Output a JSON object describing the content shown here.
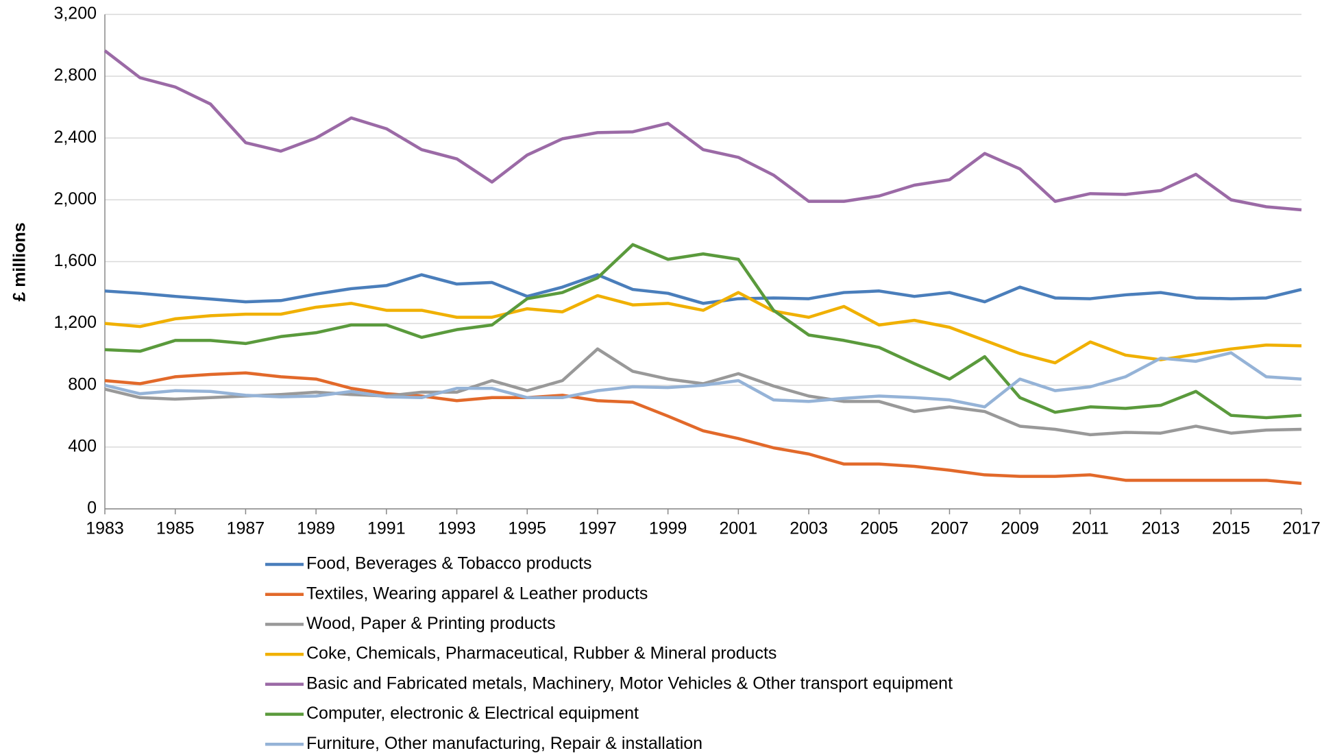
{
  "chart_data": {
    "type": "line",
    "ylabel": "£ millions",
    "x": [
      1983,
      1984,
      1985,
      1986,
      1987,
      1988,
      1989,
      1990,
      1991,
      1992,
      1993,
      1994,
      1995,
      1996,
      1997,
      1998,
      1999,
      2000,
      2001,
      2002,
      2003,
      2004,
      2005,
      2006,
      2007,
      2008,
      2009,
      2010,
      2011,
      2012,
      2013,
      2014,
      2015,
      2016,
      2017
    ],
    "xlim": [
      1983,
      2017
    ],
    "xticks": [
      1983,
      1985,
      1987,
      1989,
      1991,
      1993,
      1995,
      1997,
      1999,
      2001,
      2003,
      2005,
      2007,
      2009,
      2011,
      2013,
      2015,
      2017
    ],
    "ylim": [
      0,
      3200
    ],
    "yticks": [
      0,
      {
        "value": 400,
        "label": "400"
      },
      {
        "value": 800,
        "label": "800"
      },
      {
        "value": 1200,
        "label": "1,200"
      },
      {
        "value": 1600,
        "label": "1,600"
      },
      {
        "value": 2000,
        "label": "2,000"
      },
      {
        "value": 2400,
        "label": "2,400"
      },
      {
        "value": 2800,
        "label": "2,800"
      },
      {
        "value": 3200,
        "label": "3,200"
      }
    ],
    "grid": true,
    "legend": "bottom",
    "series": [
      {
        "name": "Food, Beverages & Tobacco products",
        "color": "#4a7ebb",
        "values": [
          1410,
          1395,
          1375,
          1358,
          1340,
          1348,
          1390,
          1425,
          1445,
          1515,
          1455,
          1465,
          1375,
          1435,
          1515,
          1420,
          1395,
          1330,
          1360,
          1365,
          1360,
          1400,
          1410,
          1375,
          1400,
          1340,
          1435,
          1365,
          1360,
          1385,
          1400,
          1365,
          1360,
          1365,
          1420
        ]
      },
      {
        "name": "Textiles, Wearing apparel & Leather products",
        "color": "#e2692a",
        "values": [
          830,
          810,
          855,
          870,
          880,
          855,
          840,
          780,
          745,
          730,
          700,
          720,
          720,
          735,
          700,
          690,
          600,
          505,
          455,
          395,
          355,
          290,
          290,
          275,
          250,
          220,
          210,
          210,
          220,
          185,
          185,
          185,
          185,
          185,
          165
        ]
      },
      {
        "name": "Wood, Paper & Printing products",
        "color": "#999999",
        "values": [
          775,
          720,
          710,
          720,
          730,
          740,
          755,
          740,
          730,
          755,
          755,
          830,
          765,
          830,
          1035,
          890,
          840,
          810,
          875,
          795,
          730,
          695,
          695,
          630,
          660,
          630,
          535,
          515,
          480,
          495,
          490,
          535,
          490,
          510,
          515
        ]
      },
      {
        "name": "Coke, Chemicals, Pharmaceutical, Rubber & Mineral products",
        "color": "#f0b000",
        "values": [
          1200,
          1180,
          1230,
          1250,
          1260,
          1260,
          1305,
          1330,
          1285,
          1285,
          1240,
          1240,
          1295,
          1275,
          1380,
          1320,
          1330,
          1285,
          1400,
          1280,
          1240,
          1310,
          1190,
          1220,
          1175,
          1090,
          1005,
          945,
          1080,
          995,
          965,
          1000,
          1035,
          1060,
          1055
        ]
      },
      {
        "name": "Basic and Fabricated metals, Machinery, Motor Vehicles & Other transport equipment",
        "color": "#9b6aa6",
        "values": [
          2965,
          2790,
          2730,
          2620,
          2370,
          2315,
          2400,
          2530,
          2460,
          2325,
          2265,
          2115,
          2290,
          2395,
          2435,
          2440,
          2495,
          2325,
          2275,
          2160,
          1990,
          1990,
          2025,
          2095,
          2130,
          2300,
          2200,
          1990,
          2040,
          2035,
          2060,
          2165,
          2000,
          1955,
          1935
        ]
      },
      {
        "name": "Computer, electronic & Electrical equipment",
        "color": "#5a9a3c",
        "values": [
          1030,
          1020,
          1090,
          1090,
          1070,
          1115,
          1140,
          1190,
          1190,
          1110,
          1160,
          1190,
          1360,
          1400,
          1495,
          1710,
          1615,
          1650,
          1615,
          1285,
          1125,
          1090,
          1045,
          940,
          840,
          985,
          720,
          625,
          660,
          650,
          670,
          760,
          605,
          590,
          605
        ]
      },
      {
        "name": "Furniture, Other manufacturing, Repair & installation",
        "color": "#95b3d7",
        "values": [
          800,
          745,
          765,
          760,
          735,
          725,
          730,
          760,
          725,
          720,
          780,
          780,
          720,
          720,
          765,
          790,
          785,
          800,
          830,
          705,
          695,
          715,
          730,
          720,
          705,
          660,
          840,
          765,
          790,
          855,
          975,
          955,
          1010,
          855,
          840
        ]
      }
    ]
  }
}
